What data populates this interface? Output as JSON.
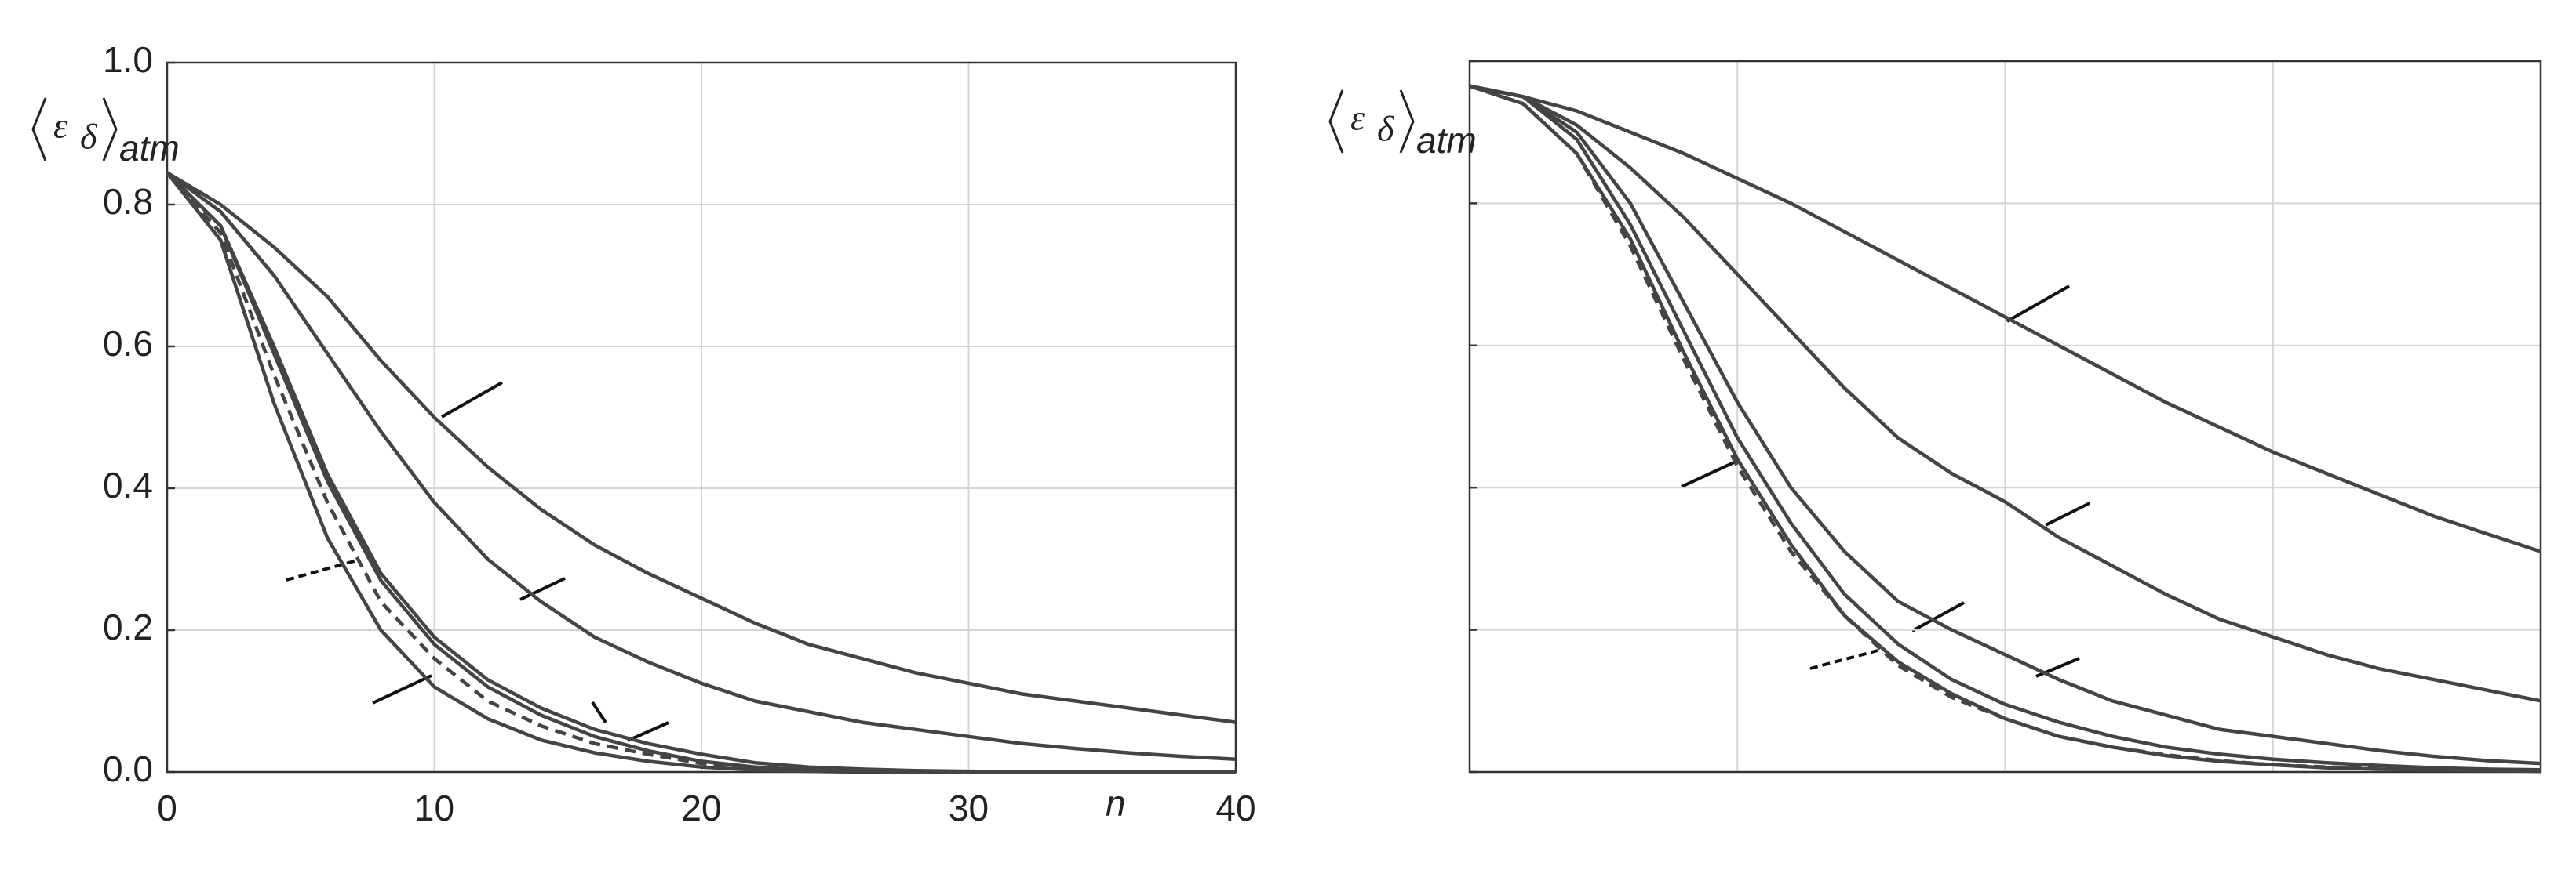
{
  "chart_data": [
    {
      "type": "line",
      "ylabel_symbol": "ε",
      "ylabel_sub": "δ",
      "ylabel_index": "atm",
      "xlabel": "n",
      "xlim": [
        0,
        40
      ],
      "ylim": [
        0,
        1.0
      ],
      "xticks": [
        0,
        10,
        20,
        30,
        40
      ],
      "yticks": [
        {
          "value": 0,
          "label": "0.0"
        },
        0.2,
        0.4,
        0.6,
        0.8,
        {
          "value": 1,
          "label": "1.0"
        }
      ],
      "tick_labels": true,
      "grid": true,
      "x": [
        0,
        2,
        4,
        6,
        8,
        10,
        12,
        14,
        16,
        18,
        20,
        22,
        24,
        26,
        28,
        30,
        32,
        34,
        36,
        38,
        40
      ],
      "series": [
        {
          "color": "#444444",
          "dash": false,
          "values": [
            0.845,
            0.8,
            0.74,
            0.67,
            0.58,
            0.5,
            0.43,
            0.37,
            0.32,
            0.28,
            0.245,
            0.21,
            0.18,
            0.16,
            0.14,
            0.125,
            0.11,
            0.1,
            0.09,
            0.08,
            0.07
          ]
        },
        {
          "color": "#444444",
          "dash": false,
          "values": [
            0.845,
            0.79,
            0.7,
            0.59,
            0.48,
            0.38,
            0.3,
            0.24,
            0.19,
            0.155,
            0.125,
            0.1,
            0.085,
            0.07,
            0.06,
            0.05,
            0.04,
            0.033,
            0.027,
            0.022,
            0.018
          ]
        },
        {
          "color": "#444444",
          "dash": false,
          "values": [
            0.845,
            0.77,
            0.6,
            0.42,
            0.28,
            0.19,
            0.13,
            0.09,
            0.06,
            0.04,
            0.025,
            0.013,
            0.007,
            0.004,
            0.002,
            0.001,
            0,
            0,
            0,
            0,
            0
          ]
        },
        {
          "color": "#444444",
          "dash": false,
          "values": [
            0.845,
            0.77,
            0.59,
            0.41,
            0.27,
            0.18,
            0.12,
            0.08,
            0.05,
            0.03,
            0.015,
            0.007,
            0.003,
            0,
            0,
            0,
            0,
            0,
            0,
            0,
            0
          ]
        },
        {
          "color": "#444444",
          "dash": true,
          "values": [
            0.845,
            0.76,
            0.56,
            0.38,
            0.24,
            0.16,
            0.1,
            0.065,
            0.04,
            0.025,
            0.012,
            0.005,
            0.002,
            0,
            0,
            0,
            0,
            0,
            0,
            0,
            0
          ]
        },
        {
          "color": "#444444",
          "dash": false,
          "values": [
            0.845,
            0.75,
            0.52,
            0.33,
            0.2,
            0.12,
            0.075,
            0.045,
            0.027,
            0.015,
            0.007,
            0.003,
            0.001,
            0,
            0,
            0,
            0,
            0,
            0,
            0,
            0
          ]
        }
      ]
    },
    {
      "type": "line",
      "ylabel_symbol": "ε",
      "ylabel_sub": "δ",
      "ylabel_index": "atm",
      "xlim": [
        0,
        40
      ],
      "ylim": [
        0,
        1.0
      ],
      "xticks": [
        0,
        10,
        20,
        30,
        40
      ],
      "yticks": [
        0,
        0.2,
        0.4,
        0.6,
        0.8,
        1
      ],
      "tick_labels": false,
      "grid": true,
      "x": [
        0,
        2,
        4,
        6,
        8,
        10,
        12,
        14,
        16,
        18,
        20,
        22,
        24,
        26,
        28,
        30,
        32,
        34,
        36,
        38,
        40
      ],
      "series": [
        {
          "color": "#444444",
          "dash": false,
          "values": [
            0.965,
            0.95,
            0.93,
            0.9,
            0.87,
            0.835,
            0.8,
            0.76,
            0.72,
            0.68,
            0.64,
            0.6,
            0.56,
            0.52,
            0.485,
            0.45,
            0.42,
            0.39,
            0.36,
            0.335,
            0.31
          ]
        },
        {
          "color": "#444444",
          "dash": false,
          "values": [
            0.965,
            0.95,
            0.91,
            0.85,
            0.78,
            0.7,
            0.62,
            0.54,
            0.47,
            0.42,
            0.38,
            0.33,
            0.29,
            0.25,
            0.215,
            0.19,
            0.165,
            0.145,
            0.13,
            0.115,
            0.1
          ]
        },
        {
          "color": "#444444",
          "dash": false,
          "values": [
            0.965,
            0.95,
            0.9,
            0.8,
            0.66,
            0.52,
            0.4,
            0.31,
            0.24,
            0.2,
            0.165,
            0.13,
            0.1,
            0.08,
            0.06,
            0.05,
            0.04,
            0.03,
            0.022,
            0.016,
            0.012
          ]
        },
        {
          "color": "#444444",
          "dash": false,
          "values": [
            0.965,
            0.95,
            0.89,
            0.77,
            0.62,
            0.47,
            0.35,
            0.25,
            0.18,
            0.13,
            0.095,
            0.07,
            0.05,
            0.035,
            0.025,
            0.018,
            0.013,
            0.009,
            0.006,
            0.004,
            0.003
          ]
        },
        {
          "color": "#444444",
          "dash": true,
          "values": [
            0.965,
            0.94,
            0.87,
            0.74,
            0.58,
            0.43,
            0.31,
            0.22,
            0.15,
            0.105,
            0.075,
            0.05,
            0.035,
            0.024,
            0.016,
            0.01,
            0.007,
            0.005,
            0.003,
            0.002,
            0.001
          ]
        },
        {
          "color": "#444444",
          "dash": false,
          "values": [
            0.965,
            0.94,
            0.87,
            0.75,
            0.59,
            0.44,
            0.32,
            0.22,
            0.155,
            0.11,
            0.075,
            0.05,
            0.035,
            0.023,
            0.015,
            0.01,
            0.006,
            0.004,
            0.003,
            0.002,
            0.001
          ]
        }
      ]
    }
  ]
}
